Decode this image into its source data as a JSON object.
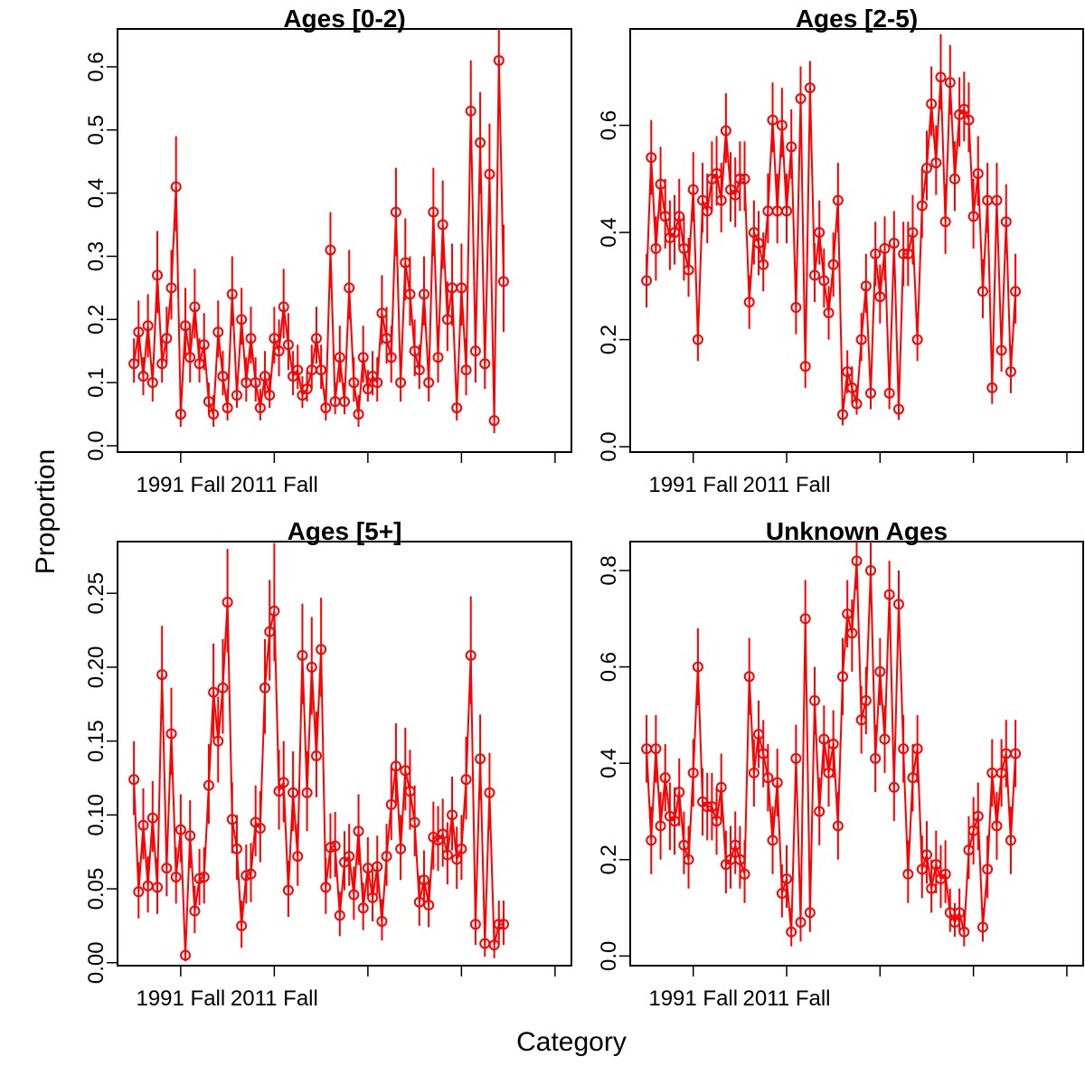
{
  "figure": {
    "xlabel": "Category",
    "ylabel": "Proportion"
  },
  "chart_data": [
    {
      "type": "scatter",
      "title": "Ages [0-2)",
      "color": "#ff0000",
      "xlabel": "Category",
      "ylabel": "Proportion",
      "x_tick_labels": [
        "1991 Fall",
        "2011 Fall"
      ],
      "x_ticks_at_index": [
        10,
        30,
        50,
        70,
        90
      ],
      "xlim": [
        -3.5,
        93.5
      ],
      "ylim": [
        -0.01,
        0.66
      ],
      "y_ticks": [
        0.0,
        0.1,
        0.2,
        0.3,
        0.4,
        0.5,
        0.6
      ],
      "y_tick_labels": [
        "0.0",
        "0.1",
        "0.2",
        "0.3",
        "0.4",
        "0.5",
        "0.6"
      ],
      "grid": false,
      "values": [
        0.13,
        0.18,
        0.11,
        0.19,
        0.1,
        0.27,
        0.13,
        0.17,
        0.25,
        0.41,
        0.05,
        0.19,
        0.14,
        0.22,
        0.13,
        0.16,
        0.07,
        0.05,
        0.18,
        0.11,
        0.06,
        0.24,
        0.08,
        0.2,
        0.1,
        0.17,
        0.1,
        0.06,
        0.11,
        0.08,
        0.17,
        0.15,
        0.22,
        0.16,
        0.11,
        0.12,
        0.08,
        0.09,
        0.12,
        0.17,
        0.12,
        0.06,
        0.31,
        0.07,
        0.14,
        0.07,
        0.25,
        0.1,
        0.05,
        0.14,
        0.09,
        0.11,
        0.1,
        0.21,
        0.17,
        0.14,
        0.37,
        0.1,
        0.29,
        0.24,
        0.15,
        0.12,
        0.24,
        0.1,
        0.37,
        0.14,
        0.35,
        0.2,
        0.25,
        0.06,
        0.25,
        0.12,
        0.53,
        0.15,
        0.48,
        0.13,
        0.43,
        0.04,
        0.61,
        0.26
      ],
      "lower": [
        0.1,
        0.13,
        0.08,
        0.14,
        0.07,
        0.21,
        0.1,
        0.13,
        0.2,
        0.34,
        0.03,
        0.14,
        0.1,
        0.17,
        0.1,
        0.12,
        0.05,
        0.03,
        0.14,
        0.08,
        0.04,
        0.19,
        0.06,
        0.16,
        0.07,
        0.13,
        0.07,
        0.04,
        0.08,
        0.06,
        0.13,
        0.11,
        0.17,
        0.12,
        0.08,
        0.09,
        0.06,
        0.07,
        0.09,
        0.13,
        0.09,
        0.04,
        0.25,
        0.05,
        0.1,
        0.05,
        0.2,
        0.07,
        0.03,
        0.1,
        0.07,
        0.08,
        0.07,
        0.16,
        0.13,
        0.1,
        0.3,
        0.07,
        0.23,
        0.19,
        0.11,
        0.09,
        0.19,
        0.07,
        0.3,
        0.1,
        0.28,
        0.15,
        0.19,
        0.04,
        0.19,
        0.08,
        0.45,
        0.1,
        0.4,
        0.09,
        0.35,
        0.02,
        0.53,
        0.18
      ],
      "upper": [
        0.17,
        0.23,
        0.14,
        0.24,
        0.13,
        0.34,
        0.17,
        0.22,
        0.31,
        0.49,
        0.08,
        0.25,
        0.19,
        0.28,
        0.17,
        0.21,
        0.1,
        0.08,
        0.23,
        0.15,
        0.09,
        0.3,
        0.11,
        0.25,
        0.14,
        0.22,
        0.14,
        0.09,
        0.15,
        0.11,
        0.22,
        0.2,
        0.28,
        0.21,
        0.15,
        0.16,
        0.11,
        0.12,
        0.16,
        0.22,
        0.16,
        0.09,
        0.37,
        0.1,
        0.19,
        0.1,
        0.31,
        0.14,
        0.08,
        0.19,
        0.12,
        0.15,
        0.14,
        0.27,
        0.22,
        0.19,
        0.44,
        0.14,
        0.36,
        0.3,
        0.2,
        0.16,
        0.3,
        0.14,
        0.44,
        0.19,
        0.42,
        0.26,
        0.32,
        0.09,
        0.32,
        0.17,
        0.61,
        0.21,
        0.56,
        0.18,
        0.51,
        0.08,
        0.66,
        0.35
      ]
    },
    {
      "type": "scatter",
      "title": "Ages [2-5)",
      "color": "#ff0000",
      "xlabel": "Category",
      "ylabel": "Proportion",
      "x_tick_labels": [
        "1991 Fall",
        "2011 Fall"
      ],
      "x_ticks_at_index": [
        10,
        30,
        50,
        70,
        90
      ],
      "xlim": [
        -3.5,
        93.5
      ],
      "ylim": [
        -0.01,
        0.78
      ],
      "y_ticks": [
        0.0,
        0.2,
        0.4,
        0.6
      ],
      "y_tick_labels": [
        "0.0",
        "0.2",
        "0.4",
        "0.6"
      ],
      "grid": false,
      "values": [
        0.31,
        0.54,
        0.37,
        0.49,
        0.43,
        0.39,
        0.4,
        0.43,
        0.37,
        0.33,
        0.48,
        0.2,
        0.46,
        0.44,
        0.5,
        0.51,
        0.46,
        0.59,
        0.48,
        0.47,
        0.5,
        0.5,
        0.27,
        0.4,
        0.38,
        0.34,
        0.44,
        0.61,
        0.44,
        0.6,
        0.44,
        0.56,
        0.26,
        0.65,
        0.15,
        0.67,
        0.32,
        0.4,
        0.31,
        0.25,
        0.34,
        0.46,
        0.06,
        0.14,
        0.11,
        0.08,
        0.2,
        0.3,
        0.1,
        0.36,
        0.28,
        0.37,
        0.1,
        0.38,
        0.07,
        0.36,
        0.36,
        0.4,
        0.2,
        0.45,
        0.52,
        0.64,
        0.53,
        0.69,
        0.42,
        0.68,
        0.5,
        0.62,
        0.63,
        0.61,
        0.43,
        0.51,
        0.29,
        0.46,
        0.11,
        0.46,
        0.18,
        0.42,
        0.14,
        0.29
      ],
      "lower": [
        0.26,
        0.47,
        0.31,
        0.43,
        0.37,
        0.33,
        0.34,
        0.37,
        0.31,
        0.28,
        0.42,
        0.16,
        0.4,
        0.38,
        0.44,
        0.45,
        0.4,
        0.53,
        0.42,
        0.41,
        0.44,
        0.44,
        0.22,
        0.34,
        0.32,
        0.29,
        0.38,
        0.55,
        0.38,
        0.54,
        0.38,
        0.5,
        0.21,
        0.59,
        0.11,
        0.61,
        0.27,
        0.34,
        0.26,
        0.2,
        0.28,
        0.4,
        0.04,
        0.1,
        0.08,
        0.06,
        0.16,
        0.25,
        0.07,
        0.3,
        0.23,
        0.31,
        0.07,
        0.32,
        0.05,
        0.3,
        0.3,
        0.34,
        0.16,
        0.39,
        0.46,
        0.58,
        0.47,
        0.63,
        0.36,
        0.62,
        0.44,
        0.56,
        0.57,
        0.55,
        0.37,
        0.45,
        0.24,
        0.4,
        0.08,
        0.4,
        0.14,
        0.36,
        0.1,
        0.23
      ],
      "upper": [
        0.36,
        0.61,
        0.43,
        0.56,
        0.5,
        0.46,
        0.47,
        0.5,
        0.43,
        0.39,
        0.55,
        0.25,
        0.53,
        0.51,
        0.57,
        0.58,
        0.53,
        0.66,
        0.55,
        0.54,
        0.57,
        0.57,
        0.32,
        0.46,
        0.44,
        0.4,
        0.51,
        0.68,
        0.51,
        0.67,
        0.51,
        0.63,
        0.31,
        0.71,
        0.2,
        0.72,
        0.38,
        0.46,
        0.37,
        0.3,
        0.4,
        0.53,
        0.09,
        0.18,
        0.15,
        0.11,
        0.25,
        0.36,
        0.14,
        0.42,
        0.34,
        0.43,
        0.14,
        0.44,
        0.1,
        0.42,
        0.42,
        0.47,
        0.25,
        0.52,
        0.59,
        0.71,
        0.6,
        0.77,
        0.49,
        0.75,
        0.57,
        0.69,
        0.7,
        0.68,
        0.5,
        0.58,
        0.35,
        0.53,
        0.15,
        0.53,
        0.23,
        0.49,
        0.19,
        0.36
      ]
    },
    {
      "type": "scatter",
      "title": "Ages [5+]",
      "color": "#ff0000",
      "xlabel": "Category",
      "ylabel": "Proportion",
      "x_tick_labels": [
        "1991 Fall",
        "2011 Fall"
      ],
      "x_ticks_at_index": [
        10,
        30,
        50,
        70,
        90
      ],
      "xlim": [
        -3.5,
        93.5
      ],
      "ylim": [
        -0.002,
        0.285
      ],
      "y_ticks": [
        0.0,
        0.05,
        0.1,
        0.15,
        0.2,
        0.25
      ],
      "y_tick_labels": [
        "0.00",
        "0.05",
        "0.10",
        "0.15",
        "0.20",
        "0.25"
      ],
      "grid": false,
      "values": [
        0.124,
        0.048,
        0.093,
        0.052,
        0.098,
        0.051,
        0.195,
        0.064,
        0.155,
        0.058,
        0.09,
        0.005,
        0.086,
        0.035,
        0.057,
        0.058,
        0.12,
        0.183,
        0.15,
        0.186,
        0.244,
        0.097,
        0.077,
        0.025,
        0.059,
        0.06,
        0.095,
        0.091,
        0.186,
        0.224,
        0.238,
        0.116,
        0.122,
        0.049,
        0.115,
        0.072,
        0.208,
        0.115,
        0.2,
        0.14,
        0.212,
        0.051,
        0.078,
        0.079,
        0.032,
        0.068,
        0.072,
        0.046,
        0.089,
        0.037,
        0.064,
        0.044,
        0.065,
        0.028,
        0.072,
        0.107,
        0.133,
        0.077,
        0.13,
        0.116,
        0.095,
        0.041,
        0.056,
        0.039,
        0.085,
        0.083,
        0.087,
        0.073,
        0.1,
        0.07,
        0.077,
        0.124,
        0.208,
        0.026,
        0.138,
        0.013,
        0.115,
        0.012,
        0.026,
        0.026
      ],
      "lower": [
        0.1,
        0.03,
        0.07,
        0.034,
        0.075,
        0.033,
        0.165,
        0.045,
        0.127,
        0.04,
        0.068,
        0.001,
        0.064,
        0.02,
        0.039,
        0.04,
        0.094,
        0.152,
        0.122,
        0.155,
        0.21,
        0.074,
        0.056,
        0.01,
        0.04,
        0.041,
        0.072,
        0.068,
        0.155,
        0.191,
        0.204,
        0.09,
        0.095,
        0.031,
        0.089,
        0.052,
        0.175,
        0.089,
        0.168,
        0.112,
        0.18,
        0.033,
        0.057,
        0.058,
        0.018,
        0.049,
        0.052,
        0.029,
        0.066,
        0.022,
        0.045,
        0.028,
        0.046,
        0.015,
        0.052,
        0.083,
        0.106,
        0.056,
        0.103,
        0.09,
        0.072,
        0.025,
        0.038,
        0.024,
        0.063,
        0.062,
        0.065,
        0.053,
        0.076,
        0.05,
        0.056,
        0.097,
        0.175,
        0.012,
        0.11,
        0.004,
        0.09,
        0.003,
        0.012,
        0.012
      ],
      "upper": [
        0.15,
        0.068,
        0.118,
        0.072,
        0.123,
        0.071,
        0.228,
        0.085,
        0.186,
        0.078,
        0.114,
        0.012,
        0.11,
        0.052,
        0.077,
        0.078,
        0.148,
        0.216,
        0.18,
        0.219,
        0.28,
        0.122,
        0.1,
        0.042,
        0.08,
        0.081,
        0.12,
        0.116,
        0.219,
        0.259,
        0.284,
        0.144,
        0.15,
        0.069,
        0.143,
        0.094,
        0.243,
        0.143,
        0.234,
        0.17,
        0.247,
        0.071,
        0.101,
        0.102,
        0.048,
        0.089,
        0.094,
        0.065,
        0.114,
        0.054,
        0.085,
        0.062,
        0.086,
        0.043,
        0.094,
        0.133,
        0.162,
        0.1,
        0.159,
        0.144,
        0.12,
        0.059,
        0.076,
        0.056,
        0.109,
        0.106,
        0.111,
        0.095,
        0.126,
        0.092,
        0.1,
        0.153,
        0.248,
        0.042,
        0.168,
        0.024,
        0.142,
        0.023,
        0.042,
        0.042
      ]
    },
    {
      "type": "scatter",
      "title": "Unknown Ages",
      "color": "#ff0000",
      "xlabel": "Category",
      "ylabel": "Proportion",
      "x_tick_labels": [
        "1991 Fall",
        "2011 Fall"
      ],
      "x_ticks_at_index": [
        10,
        30,
        50,
        70,
        90
      ],
      "xlim": [
        -3.5,
        93.5
      ],
      "ylim": [
        -0.02,
        0.86
      ],
      "y_ticks": [
        0.0,
        0.2,
        0.4,
        0.6,
        0.8
      ],
      "y_tick_labels": [
        "0.0",
        "0.2",
        "0.4",
        "0.6",
        "0.8"
      ],
      "grid": false,
      "values": [
        0.43,
        0.24,
        0.43,
        0.27,
        0.37,
        0.29,
        0.28,
        0.34,
        0.23,
        0.2,
        0.38,
        0.6,
        0.32,
        0.31,
        0.31,
        0.28,
        0.35,
        0.19,
        0.2,
        0.23,
        0.2,
        0.17,
        0.58,
        0.38,
        0.46,
        0.42,
        0.37,
        0.24,
        0.36,
        0.13,
        0.16,
        0.05,
        0.41,
        0.07,
        0.7,
        0.09,
        0.53,
        0.3,
        0.45,
        0.38,
        0.44,
        0.27,
        0.58,
        0.71,
        0.67,
        0.82,
        0.49,
        0.53,
        0.8,
        0.41,
        0.59,
        0.45,
        0.75,
        0.35,
        0.73,
        0.43,
        0.17,
        0.37,
        0.43,
        0.18,
        0.21,
        0.14,
        0.19,
        0.16,
        0.17,
        0.09,
        0.07,
        0.09,
        0.05,
        0.22,
        0.26,
        0.29,
        0.06,
        0.18,
        0.38,
        0.27,
        0.38,
        0.42,
        0.24,
        0.42
      ],
      "lower": [
        0.36,
        0.17,
        0.36,
        0.2,
        0.3,
        0.22,
        0.21,
        0.27,
        0.17,
        0.14,
        0.31,
        0.52,
        0.25,
        0.24,
        0.24,
        0.21,
        0.28,
        0.13,
        0.14,
        0.17,
        0.14,
        0.11,
        0.5,
        0.31,
        0.39,
        0.35,
        0.3,
        0.17,
        0.29,
        0.08,
        0.1,
        0.02,
        0.34,
        0.03,
        0.62,
        0.05,
        0.46,
        0.23,
        0.38,
        0.31,
        0.37,
        0.2,
        0.5,
        0.64,
        0.59,
        0.76,
        0.42,
        0.46,
        0.73,
        0.34,
        0.52,
        0.38,
        0.68,
        0.28,
        0.66,
        0.36,
        0.11,
        0.3,
        0.36,
        0.12,
        0.15,
        0.09,
        0.13,
        0.1,
        0.11,
        0.05,
        0.04,
        0.05,
        0.02,
        0.16,
        0.19,
        0.22,
        0.03,
        0.12,
        0.31,
        0.2,
        0.31,
        0.35,
        0.17,
        0.35
      ],
      "upper": [
        0.5,
        0.31,
        0.5,
        0.34,
        0.44,
        0.36,
        0.35,
        0.41,
        0.3,
        0.27,
        0.45,
        0.68,
        0.39,
        0.38,
        0.38,
        0.35,
        0.42,
        0.26,
        0.27,
        0.3,
        0.27,
        0.24,
        0.66,
        0.45,
        0.53,
        0.49,
        0.44,
        0.31,
        0.43,
        0.19,
        0.23,
        0.1,
        0.48,
        0.12,
        0.78,
        0.15,
        0.6,
        0.37,
        0.52,
        0.45,
        0.51,
        0.34,
        0.66,
        0.78,
        0.74,
        0.86,
        0.56,
        0.6,
        0.86,
        0.48,
        0.66,
        0.52,
        0.82,
        0.42,
        0.8,
        0.5,
        0.24,
        0.44,
        0.5,
        0.25,
        0.28,
        0.2,
        0.26,
        0.23,
        0.24,
        0.14,
        0.11,
        0.14,
        0.09,
        0.29,
        0.33,
        0.36,
        0.1,
        0.25,
        0.45,
        0.34,
        0.45,
        0.49,
        0.31,
        0.49
      ]
    }
  ]
}
